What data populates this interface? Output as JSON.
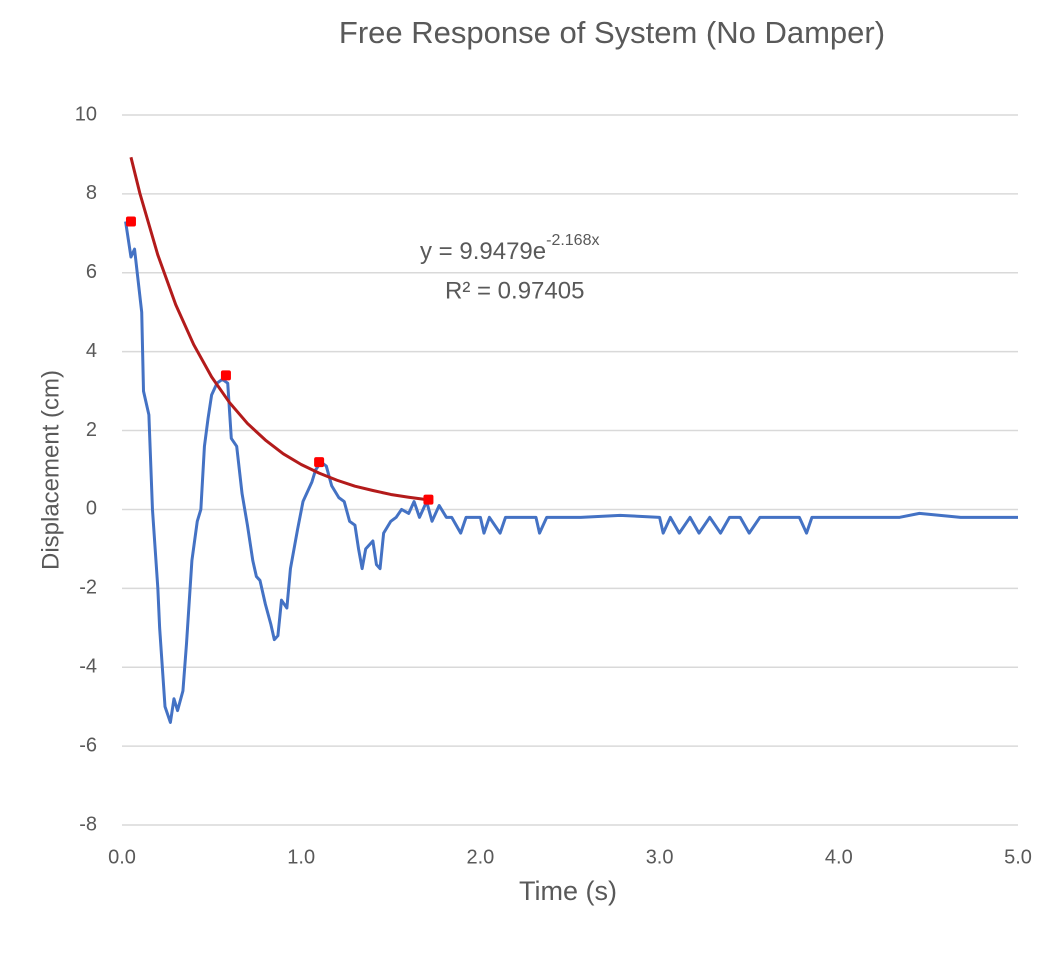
{
  "chart_data": {
    "type": "line",
    "title": "Free Response of System (No Damper)",
    "x_label": "Time (s)",
    "y_label": "Displacement (cm)",
    "xlim": [
      0,
      5
    ],
    "ylim": [
      -8,
      10
    ],
    "xticks": [
      {
        "value": 0,
        "label": "0.0"
      },
      {
        "value": 1,
        "label": "1.0"
      },
      {
        "value": 2,
        "label": "2.0"
      },
      {
        "value": 3,
        "label": "3.0"
      },
      {
        "value": 4,
        "label": "4.0"
      },
      {
        "value": 5,
        "label": "5.0"
      }
    ],
    "yticks": [
      -8,
      -6,
      -4,
      -2,
      0,
      2,
      4,
      6,
      8,
      10
    ],
    "grid": true,
    "series": [
      {
        "kind": "line",
        "color": "#4472c4",
        "x": [
          0.02,
          0.05,
          0.07,
          0.09,
          0.11,
          0.12,
          0.15,
          0.17,
          0.2,
          0.21,
          0.24,
          0.27,
          0.29,
          0.31,
          0.34,
          0.36,
          0.39,
          0.42,
          0.44,
          0.46,
          0.48,
          0.5,
          0.53,
          0.56,
          0.59,
          0.61,
          0.64,
          0.67,
          0.7,
          0.73,
          0.75,
          0.77,
          0.8,
          0.83,
          0.85,
          0.87,
          0.89,
          0.92,
          0.94,
          0.96,
          0.98,
          1.01,
          1.04,
          1.06,
          1.08,
          1.11,
          1.14,
          1.17,
          1.21,
          1.24,
          1.27,
          1.3,
          1.32,
          1.34,
          1.36,
          1.4,
          1.42,
          1.44,
          1.46,
          1.5,
          1.53,
          1.56,
          1.6,
          1.63,
          1.66,
          1.7,
          1.73,
          1.77,
          1.81,
          1.84,
          1.89,
          1.92,
          2.0,
          2.02,
          2.05,
          2.11,
          2.14,
          2.31,
          2.33,
          2.37,
          2.56,
          2.78,
          3.0,
          3.02,
          3.06,
          3.11,
          3.17,
          3.22,
          3.28,
          3.34,
          3.39,
          3.45,
          3.5,
          3.56,
          3.78,
          3.82,
          3.85,
          4.34,
          4.45,
          4.68,
          5.0
        ],
        "values": [
          7.3,
          6.4,
          6.6,
          5.8,
          5.0,
          3.0,
          2.4,
          0,
          -2,
          -3,
          -5,
          -5.4,
          -4.8,
          -5.1,
          -4.6,
          -3.4,
          -1.3,
          -0.3,
          0,
          1.6,
          2.3,
          2.9,
          3.2,
          3.3,
          3.2,
          1.8,
          1.6,
          0.4,
          -0.4,
          -1.3,
          -1.7,
          -1.8,
          -2.4,
          -2.9,
          -3.3,
          -3.2,
          -2.3,
          -2.5,
          -1.5,
          -1.0,
          -0.5,
          0.2,
          0.5,
          0.7,
          1.0,
          1.2,
          1.1,
          0.6,
          0.3,
          0.2,
          -0.3,
          -0.4,
          -1.0,
          -1.5,
          -1.0,
          -0.8,
          -1.4,
          -1.5,
          -0.6,
          -0.3,
          -0.2,
          0,
          -0.1,
          0.2,
          -0.2,
          0.2,
          -0.3,
          0.1,
          -0.2,
          -0.2,
          -0.6,
          -0.2,
          -0.2,
          -0.6,
          -0.2,
          -0.6,
          -0.2,
          -0.2,
          -0.6,
          -0.2,
          -0.2,
          -0.15,
          -0.2,
          -0.6,
          -0.2,
          -0.6,
          -0.2,
          -0.6,
          -0.2,
          -0.6,
          -0.2,
          -0.2,
          -0.6,
          -0.2,
          -0.2,
          -0.6,
          -0.2,
          -0.2,
          -0.1,
          -0.2,
          -0.2
        ]
      },
      {
        "kind": "line",
        "color": "#b31b1b",
        "x": [
          0.05,
          0.1,
          0.2,
          0.3,
          0.4,
          0.5,
          0.6,
          0.7,
          0.8,
          0.9,
          1.0,
          1.1,
          1.2,
          1.3,
          1.4,
          1.5,
          1.6,
          1.7
        ],
        "values": [
          8.93,
          8.01,
          6.45,
          5.19,
          4.18,
          3.36,
          2.71,
          2.18,
          1.76,
          1.41,
          1.14,
          0.92,
          0.74,
          0.59,
          0.48,
          0.38,
          0.31,
          0.25
        ]
      },
      {
        "kind": "markers",
        "color": "#ff0000",
        "x": [
          0.05,
          0.58,
          1.1,
          1.71
        ],
        "values": [
          7.3,
          3.4,
          1.2,
          0.25
        ]
      }
    ],
    "annotations": [
      {
        "text": "y = 9.9479e",
        "superscript": "-2.168x"
      },
      {
        "text": "R² = 0.97405"
      }
    ]
  }
}
